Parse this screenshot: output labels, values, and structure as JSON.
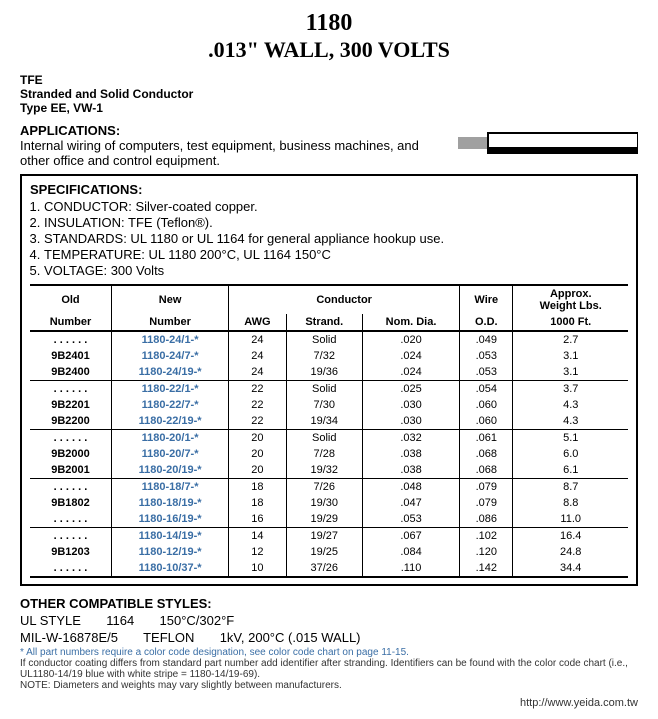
{
  "header": {
    "number": "1180",
    "subtitle": ".013\" WALL, 300 VOLTS"
  },
  "top": {
    "line1": "TFE",
    "line2": "Stranded and Solid Conductor",
    "line3": "Type EE, VW-1"
  },
  "apps": {
    "title": "APPLICATIONS:",
    "text": "Internal wiring of computers, test equipment, business machines, and other office and control equipment."
  },
  "specs": {
    "title": "SPECIFICATIONS:",
    "items": [
      "CONDUCTOR: Silver-coated copper.",
      "INSULATION: TFE (Teflon®).",
      "STANDARDS: UL 1180 or UL 1164 for general appliance hookup use.",
      "TEMPERATURE: UL 1180 200°C, UL 1164 150°C",
      "VOLTAGE: 300 Volts"
    ]
  },
  "table": {
    "headers": {
      "old": "Old",
      "new": "New",
      "conductor": "Conductor",
      "wire": "Wire",
      "approx": "Approx.",
      "number": "Number",
      "awg": "AWG",
      "strand": "Strand.",
      "nomdia": "Nom. Dia.",
      "od": "O.D.",
      "weight": "Weight Lbs.",
      "per": "1000 Ft."
    },
    "groups": [
      [
        {
          "old": ". . . . . .",
          "new": "1180-24/1-*",
          "awg": "24",
          "strand": "Solid",
          "dia": ".020",
          "od": ".049",
          "wt": "2.7"
        },
        {
          "old": "9B2401",
          "new": "1180-24/7-*",
          "awg": "24",
          "strand": "7/32",
          "dia": ".024",
          "od": ".053",
          "wt": "3.1"
        },
        {
          "old": "9B2400",
          "new": "1180-24/19-*",
          "awg": "24",
          "strand": "19/36",
          "dia": ".024",
          "od": ".053",
          "wt": "3.1"
        }
      ],
      [
        {
          "old": ". . . . . .",
          "new": "1180-22/1-*",
          "awg": "22",
          "strand": "Solid",
          "dia": ".025",
          "od": ".054",
          "wt": "3.7"
        },
        {
          "old": "9B2201",
          "new": "1180-22/7-*",
          "awg": "22",
          "strand": "7/30",
          "dia": ".030",
          "od": ".060",
          "wt": "4.3"
        },
        {
          "old": "9B2200",
          "new": "1180-22/19-*",
          "awg": "22",
          "strand": "19/34",
          "dia": ".030",
          "od": ".060",
          "wt": "4.3"
        }
      ],
      [
        {
          "old": ". . . . . .",
          "new": "1180-20/1-*",
          "awg": "20",
          "strand": "Solid",
          "dia": ".032",
          "od": ".061",
          "wt": "5.1"
        },
        {
          "old": "9B2000",
          "new": "1180-20/7-*",
          "awg": "20",
          "strand": "7/28",
          "dia": ".038",
          "od": ".068",
          "wt": "6.0"
        },
        {
          "old": "9B2001",
          "new": "1180-20/19-*",
          "awg": "20",
          "strand": "19/32",
          "dia": ".038",
          "od": ".068",
          "wt": "6.1"
        }
      ],
      [
        {
          "old": ". . . . . .",
          "new": "1180-18/7-*",
          "awg": "18",
          "strand": "7/26",
          "dia": ".048",
          "od": ".079",
          "wt": "8.7"
        },
        {
          "old": "9B1802",
          "new": "1180-18/19-*",
          "awg": "18",
          "strand": "19/30",
          "dia": ".047",
          "od": ".079",
          "wt": "8.8"
        },
        {
          "old": ". . . . . .",
          "new": "1180-16/19-*",
          "awg": "16",
          "strand": "19/29",
          "dia": ".053",
          "od": ".086",
          "wt": "11.0"
        }
      ],
      [
        {
          "old": ". . . . . .",
          "new": "1180-14/19-*",
          "awg": "14",
          "strand": "19/27",
          "dia": ".067",
          "od": ".102",
          "wt": "16.4"
        },
        {
          "old": "9B1203",
          "new": "1180-12/19-*",
          "awg": "12",
          "strand": "19/25",
          "dia": ".084",
          "od": ".120",
          "wt": "24.8"
        },
        {
          "old": ". . . . . .",
          "new": "1180-10/37-*",
          "awg": "10",
          "strand": "37/26",
          "dia": ".110",
          "od": ".142",
          "wt": "34.4"
        }
      ]
    ]
  },
  "compat": {
    "title": "OTHER COMPATIBLE STYLES:",
    "line1a": "UL STYLE",
    "line1b": "1164",
    "line1c": "150°C/302°F",
    "line2a": "MIL-W-16878E/5",
    "line2b": "TEFLON",
    "line2c": "1kV, 200°C (.015 WALL)",
    "star": "* All part numbers require a color code designation, see color code chart on page 11-15.",
    "note1": "If conductor coating differs from standard part number add identifier after stranding. Identifiers can be found with the color code chart (i.e., UL1180-14/19 blue with white stripe = 1180-14/19-69).",
    "note2": "NOTE: Diameters and weights may vary slightly between manufacturers."
  },
  "url": "http://www.yeida.com.tw"
}
